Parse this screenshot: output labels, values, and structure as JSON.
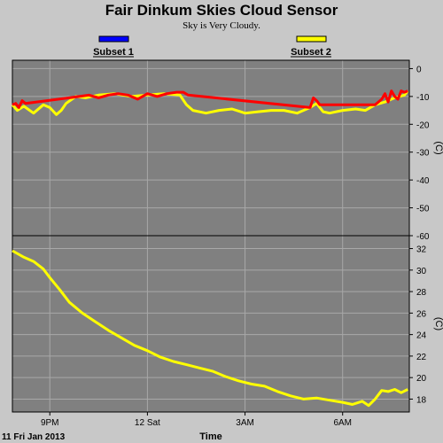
{
  "chart_data": {
    "type": "line",
    "title": "Fair Dinkum Skies Cloud Sensor",
    "subtitle": "Sky is Very Cloudy.",
    "legend": [
      {
        "name": "Subset 1",
        "color": "#0000ff"
      },
      {
        "name": "Subset 2",
        "color": "#ffff00"
      }
    ],
    "xlabel": "Time",
    "date_label": "11 Fri Jan 2013",
    "x_ticks": [
      "9PM",
      "12 Sat",
      "3AM",
      "6AM"
    ],
    "x_ticks_hours": [
      21,
      24,
      27,
      30
    ],
    "xlim_hours": [
      19.85,
      32.05
    ],
    "grid": true,
    "panels": [
      {
        "name": "sky-temperature",
        "ylabel": "(C)",
        "ylim": [
          -60,
          3
        ],
        "y_ticks": [
          0,
          -10,
          -20,
          -30,
          -40,
          -50,
          -60
        ],
        "y_tick_labels": [
          "0",
          "-10",
          "-20",
          "-30",
          "-40",
          "-50",
          "-60"
        ],
        "series": [
          {
            "color": "#ffff00",
            "x": [
              19.85,
              20.0,
              20.2,
              20.5,
              20.8,
              21.0,
              21.2,
              21.35,
              21.5,
              21.8,
              22.1,
              22.5,
              23.0,
              23.5,
              24.0,
              24.5,
              25.0,
              25.2,
              25.4,
              25.8,
              26.2,
              26.6,
              27.0,
              27.4,
              27.8,
              28.2,
              28.6,
              29.0,
              29.2,
              29.4,
              29.6,
              30.0,
              30.4,
              30.7,
              31.0,
              31.3,
              31.6,
              31.9,
              32.0
            ],
            "y": [
              -13,
              -15,
              -13.5,
              -16,
              -13,
              -14,
              -16.5,
              -15,
              -12.5,
              -10,
              -10.5,
              -9.5,
              -9,
              -10,
              -9.5,
              -9,
              -9.5,
              -13,
              -15,
              -16,
              -15,
              -14.5,
              -16,
              -15.5,
              -15,
              -15,
              -16,
              -14,
              -12.5,
              -15.5,
              -16,
              -15,
              -14.5,
              -15,
              -13,
              -12,
              -10.5,
              -9.5,
              -8
            ]
          },
          {
            "color": "#ff0000",
            "x": [
              19.85,
              19.95,
              20.05,
              20.15,
              20.25,
              21.6,
              21.9,
              22.2,
              22.5,
              22.8,
              23.1,
              23.4,
              23.7,
              24.0,
              24.3,
              24.6,
              24.9,
              25.1,
              25.25,
              29.0,
              29.1,
              29.2,
              29.3,
              31.0,
              31.1,
              31.2,
              31.3,
              31.4,
              31.5,
              31.6,
              31.7,
              31.8,
              31.9,
              32.0
            ],
            "y": [
              -13,
              -12.5,
              -14,
              -11.5,
              -12.5,
              -10.5,
              -10,
              -9.5,
              -10.5,
              -9.5,
              -9,
              -9.5,
              -11,
              -9,
              -10,
              -9,
              -8.5,
              -8.5,
              -9.5,
              -14,
              -10.5,
              -11.5,
              -13,
              -13,
              -12,
              -11,
              -9,
              -12,
              -8,
              -10,
              -11,
              -8,
              -8.5,
              -8
            ]
          }
        ]
      },
      {
        "name": "ambient-temperature",
        "ylabel": "(C)",
        "ylim": [
          16.8,
          33.2
        ],
        "y_ticks": [
          32,
          30,
          28,
          26,
          24,
          22,
          20,
          18
        ],
        "y_tick_labels": [
          "32",
          "30",
          "28",
          "26",
          "24",
          "22",
          "20",
          "18"
        ],
        "series": [
          {
            "color": "#ffff00",
            "x": [
              19.85,
              20.2,
              20.5,
              20.8,
              21.0,
              21.3,
              21.6,
              22.0,
              22.4,
              22.8,
              23.2,
              23.6,
              24.0,
              24.4,
              24.8,
              25.2,
              25.6,
              26.0,
              26.4,
              26.8,
              27.2,
              27.6,
              28.0,
              28.4,
              28.8,
              29.2,
              29.6,
              30.0,
              30.3,
              30.6,
              30.8,
              31.0,
              31.2,
              31.4,
              31.6,
              31.8,
              32.0
            ],
            "y": [
              31.8,
              31.2,
              30.8,
              30.1,
              29.3,
              28.2,
              27.0,
              26.0,
              25.2,
              24.4,
              23.7,
              23.0,
              22.5,
              21.9,
              21.5,
              21.2,
              20.9,
              20.6,
              20.1,
              19.7,
              19.4,
              19.2,
              18.7,
              18.3,
              18.0,
              18.1,
              17.9,
              17.7,
              17.5,
              17.8,
              17.4,
              18.0,
              18.8,
              18.7,
              18.9,
              18.6,
              18.9
            ]
          }
        ]
      }
    ]
  }
}
